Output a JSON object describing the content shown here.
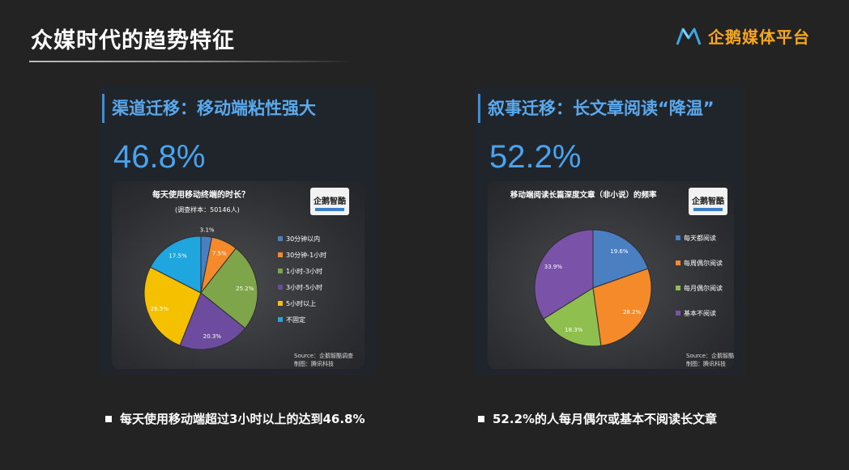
{
  "slide": {
    "title": "众媒时代的趋势特征",
    "brand": "企鹅媒体平台",
    "brand_color": "#f5a623",
    "brand_icon": "m-logo-icon"
  },
  "bullets": [
    "每天使用移动端超过3小时以上的达到46.8%",
    "52.2%的人每月偶尔或基本不阅读长文章"
  ],
  "chart_data": [
    {
      "type": "pie",
      "heading": "渠道迁移：移动端粘性强大",
      "big_stat": "46.8%",
      "title": "每天使用移动终端的时长？",
      "subtitle": "(调查样本：50146人)",
      "logo_text": "企鹅智酷",
      "source": "Source：企鹅智酷调查",
      "maker": "制图：腾讯科技",
      "legend_position": "right",
      "slices": [
        {
          "label": "30分钟以内",
          "value": 3.1,
          "display": "3.1%",
          "color": "#4a7fc1"
        },
        {
          "label": "30分钟-1小时",
          "value": 7.5,
          "display": "7.5%",
          "color": "#f58a2b"
        },
        {
          "label": "1小时-3小时",
          "value": 25.2,
          "display": "25.2%",
          "color": "#7fa54a"
        },
        {
          "label": "3小时-5小时",
          "value": 20.3,
          "display": "20.3%",
          "color": "#6d4b9e"
        },
        {
          "label": "5小时以上",
          "value": 26.5,
          "display": "26.5%",
          "color": "#f5c000"
        },
        {
          "label": "不固定",
          "value": 17.5,
          "display": "17.5%",
          "color": "#1fa6df"
        }
      ]
    },
    {
      "type": "pie",
      "heading": "叙事迁移：长文章阅读“降温”",
      "big_stat": "52.2%",
      "title": "移动端阅读长篇深度文章（非小说）的频率",
      "subtitle": "",
      "logo_text": "企鹅智酷",
      "source": "Source：企鹅智酷调查",
      "maker": "制图：腾讯科技",
      "legend_position": "right",
      "slices": [
        {
          "label": "每天都阅读",
          "value": 19.6,
          "display": "19.6%",
          "color": "#4a7fc1"
        },
        {
          "label": "每周偶尔阅读",
          "value": 28.2,
          "display": "28.2%",
          "color": "#f58a2b"
        },
        {
          "label": "每月偶尔阅读",
          "value": 18.3,
          "display": "18.3%",
          "color": "#8fc04f"
        },
        {
          "label": "基本不阅读",
          "value": 33.9,
          "display": "33.9%",
          "color": "#7a52a8"
        }
      ]
    }
  ]
}
